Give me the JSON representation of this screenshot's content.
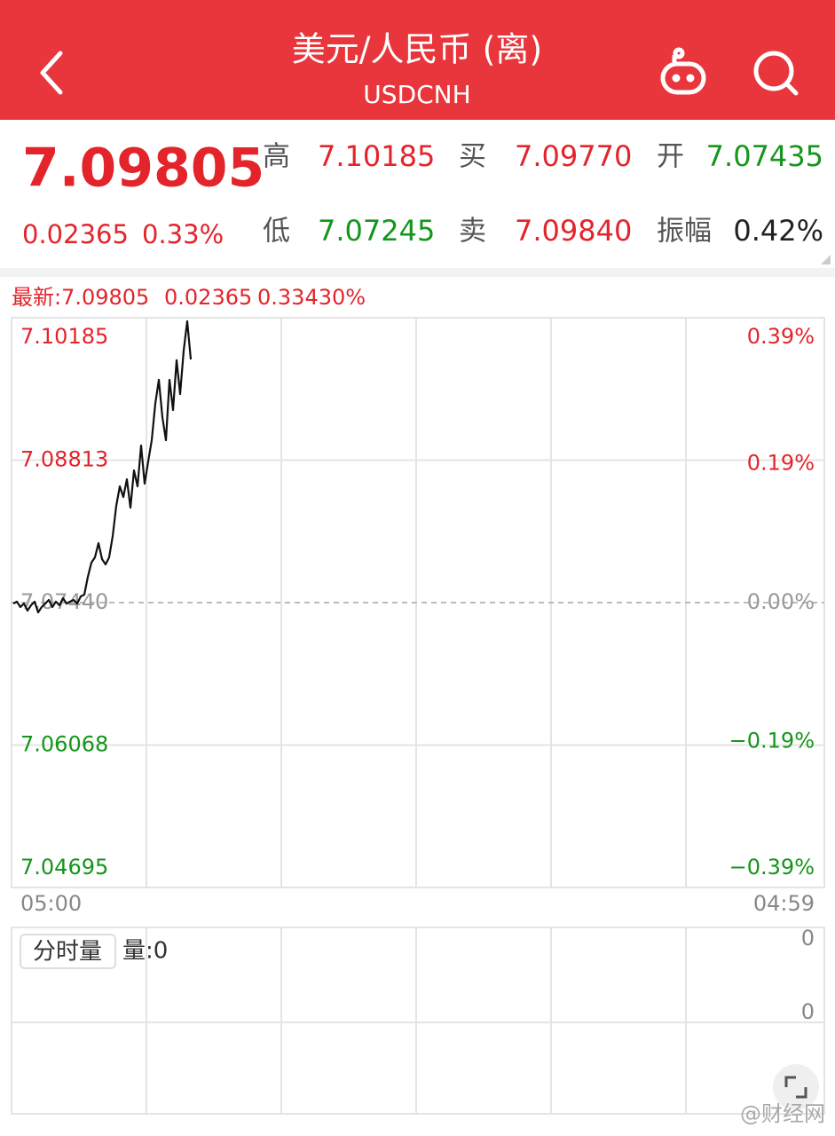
{
  "header": {
    "title": "美元/人民币 (离)",
    "subtitle": "USDCNH"
  },
  "quote": {
    "price": "7.09805",
    "change": "0.02365",
    "change_pct": "0.33%",
    "stats": [
      {
        "label": "高",
        "value": "7.10185"
      },
      {
        "label": "买",
        "value": "7.09770"
      },
      {
        "label": "开",
        "value": "7.07435"
      },
      {
        "label": "低",
        "value": "7.07245"
      },
      {
        "label": "卖",
        "value": "7.09840"
      },
      {
        "label": "振幅",
        "value": "0.42%"
      }
    ]
  },
  "latest": {
    "price": "最新:7.09805",
    "change": "0.02365",
    "change_pct": "0.33430%"
  },
  "chart_data": {
    "type": "line",
    "color": "#111111",
    "values": [
      7.07431,
      7.07449,
      7.07397,
      7.07431,
      7.07363,
      7.07414,
      7.07449,
      7.07346,
      7.07397,
      7.07431,
      7.07466,
      7.07397,
      7.07449,
      7.07414,
      7.07483,
      7.07431,
      7.07449,
      7.07466,
      7.07431,
      7.075,
      7.07517,
      7.07688,
      7.07825,
      7.07876,
      7.08013,
      7.07859,
      7.07808,
      7.07876,
      7.08081,
      7.08372,
      7.0856,
      7.08458,
      7.08629,
      7.08355,
      7.08714,
      7.0856,
      7.08954,
      7.08586,
      7.088,
      7.09005,
      7.09356,
      7.09586,
      7.09227,
      7.09005,
      7.09586,
      7.09296,
      7.09775,
      7.0945,
      7.09869,
      7.10151,
      7.09783
    ],
    "ylim": [
      7.04695,
      7.10185
    ],
    "yticks": [
      7.10185,
      7.08813,
      {
        "value": 7.0744,
        "label": "7.07440"
      },
      7.06068,
      7.04695
    ],
    "y2lim": [
      -0.39,
      0.39
    ],
    "y2ticks": [
      {
        "value": 0.39,
        "label": "0.39%"
      },
      {
        "value": 0.19,
        "label": "0.19%"
      },
      {
        "value": 0,
        "label": "0.00%"
      },
      {
        "value": -0.19,
        "label": "−0.19%"
      },
      {
        "value": -0.39,
        "label": "−0.39%"
      }
    ],
    "xlabels": [
      "05:00",
      "04:59"
    ],
    "grid": true
  },
  "volume": {
    "button": "分时量",
    "label": "量:0",
    "ticks": [
      "0",
      "0"
    ]
  },
  "watermark": "@财经网"
}
